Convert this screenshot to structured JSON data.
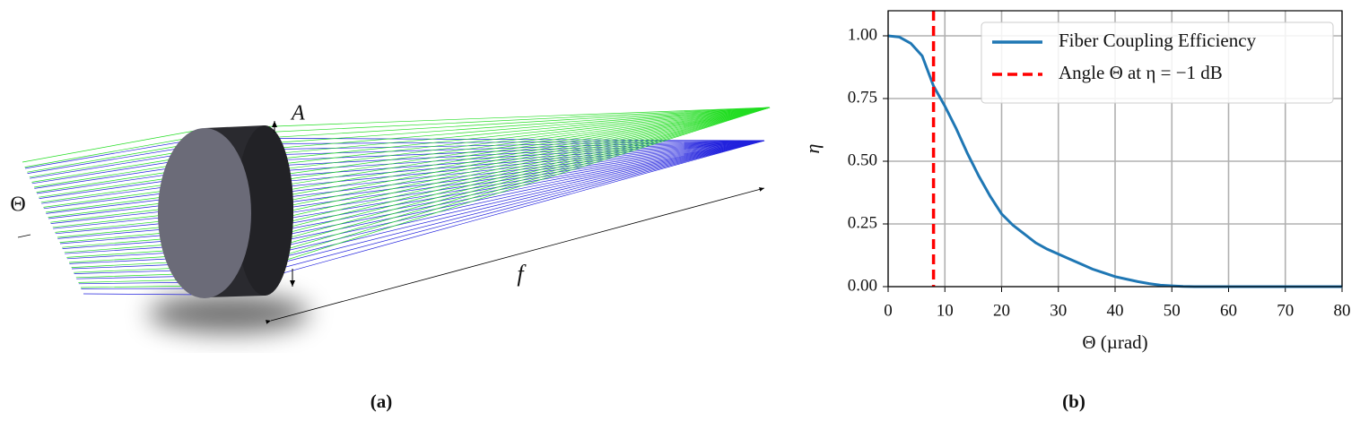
{
  "illustration": {
    "labels": {
      "aperture": "A",
      "angle": "Θ",
      "focal": "f"
    }
  },
  "captions": [
    "(a)",
    "(b)"
  ],
  "chart_data": {
    "type": "line",
    "xlabel": "Θ (µrad)",
    "ylabel": "η",
    "xlim": [
      0,
      80
    ],
    "ylim": [
      0,
      1.1
    ],
    "xticks": [
      0,
      10,
      20,
      30,
      40,
      50,
      60,
      70,
      80
    ],
    "yticks": [
      {
        "value": 0,
        "label": "0.00"
      },
      {
        "value": 0.25,
        "label": "0.25"
      },
      {
        "value": 0.5,
        "label": "0.50"
      },
      {
        "value": 0.75,
        "label": "0.75"
      },
      {
        "value": 1,
        "label": "1.00"
      }
    ],
    "grid": true,
    "legend": "upper right",
    "x": [
      0,
      2,
      4,
      6,
      8,
      10,
      12,
      14,
      16,
      18,
      20,
      22,
      24,
      26,
      28,
      30,
      32,
      34,
      36,
      38,
      40,
      42,
      44,
      46,
      48,
      50,
      52,
      54,
      56,
      60,
      64,
      68,
      72,
      76,
      80
    ],
    "series": [
      {
        "name": "Fiber Coupling Efficiency",
        "color": "#1f77b4",
        "values": [
          1.0,
          0.995,
          0.97,
          0.92,
          0.8,
          0.72,
          0.63,
          0.53,
          0.44,
          0.36,
          0.29,
          0.245,
          0.21,
          0.175,
          0.15,
          0.13,
          0.11,
          0.09,
          0.07,
          0.055,
          0.04,
          0.03,
          0.02,
          0.012,
          0.006,
          0.003,
          0.001,
          0,
          0,
          0,
          0,
          0,
          0,
          0,
          0
        ]
      }
    ],
    "vlines": [
      {
        "name": "Angle Θ at η = −1 dB",
        "color": "#ff0000",
        "x": 8
      }
    ]
  }
}
